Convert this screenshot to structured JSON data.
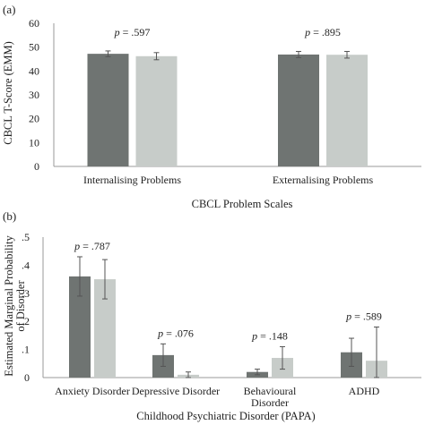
{
  "chart_data": [
    {
      "type": "bar",
      "panel_label": "(a)",
      "categories": [
        "Internalising Problems",
        "Externalising Problems"
      ],
      "series": [
        {
          "values": [
            47.2,
            46.9
          ],
          "errors": [
            1.2,
            1.3
          ],
          "color": "#6f7472"
        },
        {
          "values": [
            46.2,
            46.8
          ],
          "errors": [
            1.5,
            1.4
          ],
          "color": "#c7ccc9"
        }
      ],
      "annotations": [
        {
          "prefix": "p",
          "text": " = .597"
        },
        {
          "prefix": "p",
          "text": " = .895"
        }
      ],
      "xlabel": "CBCL Problem Scales",
      "ylabel": "CBCL T-Score (EMM)",
      "ylim": [
        0,
        60
      ],
      "yticks": [
        "0",
        "10",
        "20",
        "30",
        "40",
        "50",
        "60"
      ],
      "grid": false
    },
    {
      "type": "bar",
      "panel_label": "(b)",
      "categories": [
        "Anxiety Disorder",
        "Depressive Disorder",
        "Behavioural Disorder",
        "ADHD"
      ],
      "category_lines": [
        [
          "Anxiety Disorder"
        ],
        [
          "Depressive Disorder"
        ],
        [
          "Behavioural",
          "Disorder"
        ],
        [
          "ADHD"
        ]
      ],
      "series": [
        {
          "values": [
            0.36,
            0.08,
            0.02,
            0.09
          ],
          "err_low": [
            0.29,
            0.04,
            0.01,
            0.04
          ],
          "err_high": [
            0.43,
            0.12,
            0.03,
            0.14
          ],
          "color": "#6f7472"
        },
        {
          "values": [
            0.35,
            0.01,
            0.07,
            0.06
          ],
          "err_low": [
            0.28,
            0.0,
            0.03,
            0.0
          ],
          "err_high": [
            0.42,
            0.02,
            0.11,
            0.18
          ],
          "color": "#c7ccc9"
        }
      ],
      "annotations": [
        {
          "prefix": "p",
          "text": " = .787"
        },
        {
          "prefix": "p",
          "text": " = .076"
        },
        {
          "prefix": "p",
          "text": " = .148"
        },
        {
          "prefix": "p",
          "text": " = .589"
        }
      ],
      "xlabel": "Childhood Psychiatric Disorder (PAPA)",
      "ylabel_lines": [
        "Estimated Marginal Probability",
        "of Disorder"
      ],
      "ylim": [
        0,
        0.5
      ],
      "yticks": [
        "0",
        ".1",
        ".2",
        ".3",
        ".4",
        ".5"
      ],
      "grid": false
    }
  ]
}
